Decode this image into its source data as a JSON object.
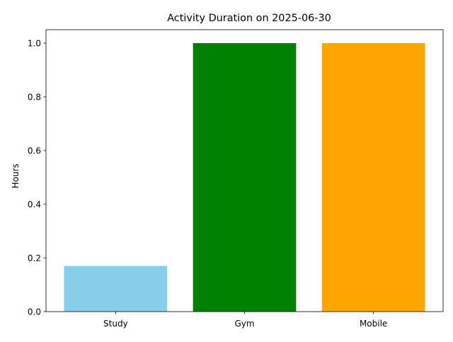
{
  "chart_data": {
    "type": "bar",
    "title": "Activity Duration on 2025-06-30",
    "xlabel": "",
    "ylabel": "Hours",
    "categories": [
      "Study",
      "Gym",
      "Mobile"
    ],
    "values": [
      0.17,
      1.0,
      1.0
    ],
    "colors": [
      "#87ceeb",
      "#008000",
      "#ffa500"
    ],
    "ylim": [
      0,
      1.05
    ],
    "yticks": [
      0.0,
      0.2,
      0.4,
      0.6,
      0.8,
      1.0
    ],
    "ytick_labels": [
      "0.0",
      "0.2",
      "0.4",
      "0.6",
      "0.8",
      "1.0"
    ],
    "grid": false,
    "legend": "none"
  }
}
